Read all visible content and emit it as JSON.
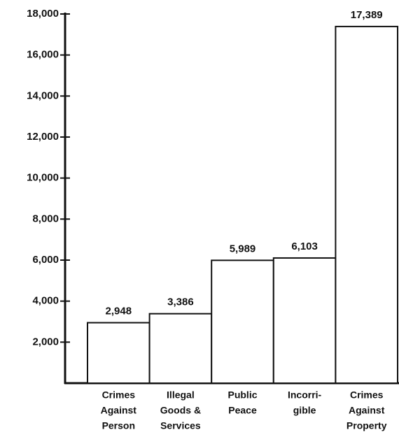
{
  "chart_data": {
    "type": "bar",
    "categories": [
      [
        "Crimes",
        "Against",
        "Person"
      ],
      [
        "Illegal",
        "Goods &",
        "Services"
      ],
      [
        "Public",
        "Peace"
      ],
      [
        "Incorri-",
        "gible"
      ],
      [
        "Crimes",
        "Against",
        "Property"
      ]
    ],
    "values": [
      2948,
      3386,
      5989,
      6103,
      17389
    ],
    "value_labels": [
      "2,948",
      "3,386",
      "5,989",
      "6,103",
      "17,389"
    ],
    "color": "#ffffff",
    "ylim": [
      0,
      18000
    ],
    "yticks": [
      {
        "value": 2000,
        "label": "2,000"
      },
      {
        "value": 4000,
        "label": "4,000"
      },
      {
        "value": 6000,
        "label": "6,000"
      },
      {
        "value": 8000,
        "label": "8,000"
      },
      {
        "value": 10000,
        "label": "10,000"
      },
      {
        "value": 12000,
        "label": "12,000"
      },
      {
        "value": 14000,
        "label": "14,000"
      },
      {
        "value": 16000,
        "label": "16,000"
      },
      {
        "value": 18000,
        "label": "18,000"
      }
    ]
  }
}
